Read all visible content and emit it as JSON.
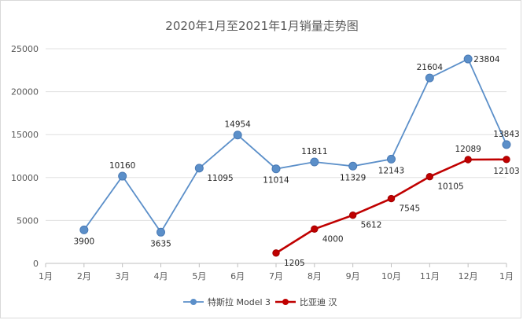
{
  "chart_data": {
    "type": "line",
    "title": "2020年1月至2021年1月销量走势图",
    "categories": [
      "1月",
      "2月",
      "3月",
      "4月",
      "5月",
      "6月",
      "7月",
      "8月",
      "9月",
      "10月",
      "11月",
      "12月",
      "1月"
    ],
    "ylim": [
      0,
      25000
    ],
    "yticks": [
      0,
      5000,
      10000,
      15000,
      20000,
      25000
    ],
    "grid": true,
    "legend": "bottom",
    "series": [
      {
        "name": "特斯拉 Model 3",
        "color": "#5b8fc9",
        "values": [
          null,
          3900,
          10160,
          3635,
          11095,
          14954,
          11014,
          11811,
          11329,
          12143,
          21604,
          23804,
          13843
        ]
      },
      {
        "name": "比亚迪 汉",
        "color": "#c00000",
        "values": [
          null,
          null,
          null,
          null,
          null,
          null,
          1205,
          4000,
          5612,
          7545,
          10105,
          12089,
          12103
        ]
      }
    ]
  }
}
